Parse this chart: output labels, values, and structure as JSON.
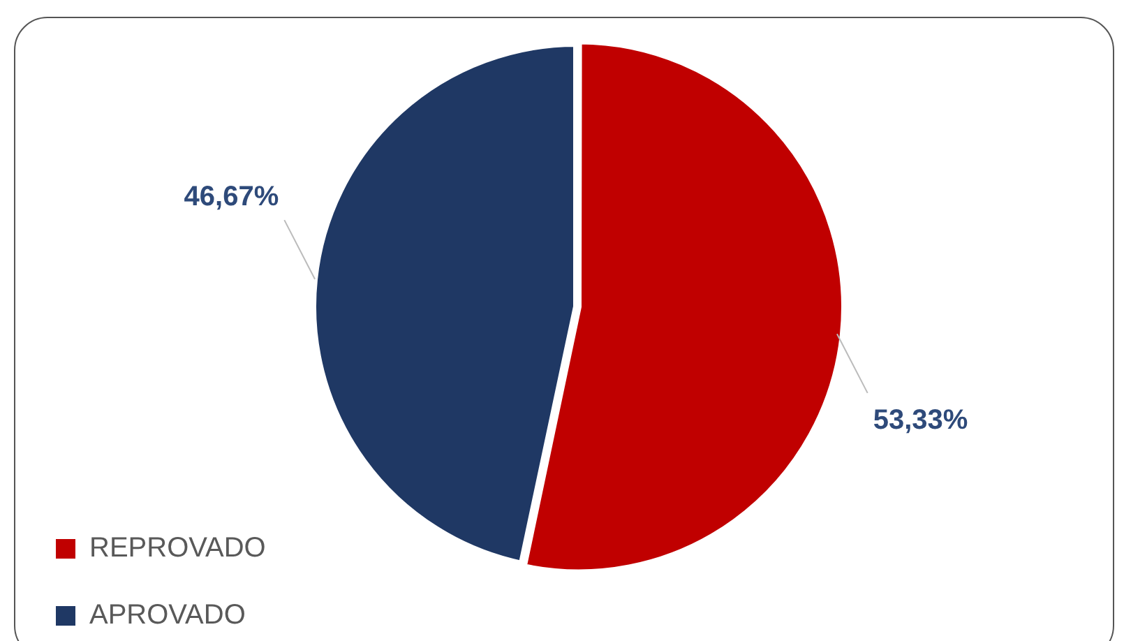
{
  "chart_data": {
    "type": "pie",
    "categories": [
      "REPROVADO",
      "APROVADO"
    ],
    "values": [
      53.33,
      46.67
    ],
    "colors": [
      "#c00000",
      "#1f3864"
    ],
    "value_labels": [
      "53,33%",
      "46,67%"
    ],
    "legend": "bottom left"
  }
}
